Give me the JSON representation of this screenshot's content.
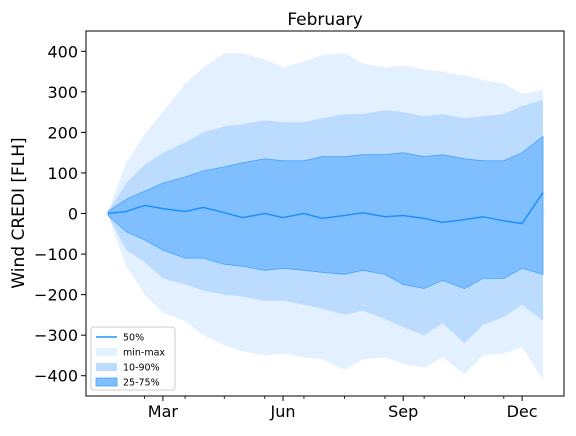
{
  "chart_data": {
    "type": "area",
    "title": "February",
    "xlabel": "",
    "ylabel": "Wind CREDI [FLH]",
    "x_start": "Feb 1",
    "x_end": "Dec 31",
    "x_ticks": [
      "Mar",
      "Jun",
      "Sep",
      "Dec"
    ],
    "x_tick_months": [
      3,
      6,
      9,
      12
    ],
    "y_ticks": [
      400,
      300,
      200,
      100,
      0,
      -100,
      -200,
      -300,
      -400
    ],
    "y_tick_labels": [
      "400",
      "300",
      "200",
      "100",
      "0",
      "−100",
      "−200",
      "−300",
      "−400"
    ],
    "ylim": [
      -450,
      450
    ],
    "grid": false,
    "legend_position": "lower-left",
    "legend": [
      "50%",
      "min-max",
      "10-90%",
      "25-75%"
    ],
    "colors": {
      "median": "#1e90ff",
      "minmax": "#e3f0ff",
      "p10_90": "#bcdcff",
      "p25_75": "#7fbfff",
      "p25_75_edge": "#4aa3ff"
    },
    "series": [
      {
        "name": "50%",
        "x": [
          "Feb 1",
          "Feb 15",
          "Mar 1",
          "Mar 15",
          "Apr 1",
          "Apr 15",
          "May 1",
          "May 15",
          "Jun 1",
          "Jun 15",
          "Jul 1",
          "Jul 15",
          "Aug 1",
          "Aug 15",
          "Sep 1",
          "Sep 15",
          "Oct 1",
          "Oct 15",
          "Nov 1",
          "Nov 15",
          "Dec 1",
          "Dec 15",
          "Dec 31"
        ],
        "values": [
          0,
          5,
          20,
          12,
          5,
          15,
          2,
          -10,
          0,
          -10,
          0,
          -12,
          -5,
          2,
          -8,
          -5,
          -12,
          -22,
          -15,
          -8,
          -18,
          -25,
          52
        ]
      },
      {
        "name": "25-75%",
        "x": [
          "Feb 1",
          "Feb 15",
          "Mar 1",
          "Mar 15",
          "Apr 1",
          "Apr 15",
          "May 1",
          "May 15",
          "Jun 1",
          "Jun 15",
          "Jul 1",
          "Jul 15",
          "Aug 1",
          "Aug 15",
          "Sep 1",
          "Sep 15",
          "Oct 1",
          "Oct 15",
          "Nov 1",
          "Nov 15",
          "Dec 1",
          "Dec 15",
          "Dec 31"
        ],
        "lower": [
          -5,
          -45,
          -65,
          -90,
          -110,
          -110,
          -125,
          -130,
          -140,
          -135,
          -140,
          -145,
          -150,
          -140,
          -150,
          -175,
          -185,
          -165,
          -185,
          -160,
          -160,
          -135,
          -150
        ],
        "upper": [
          5,
          35,
          55,
          75,
          90,
          105,
          115,
          125,
          135,
          130,
          130,
          140,
          140,
          145,
          145,
          150,
          140,
          145,
          135,
          130,
          130,
          150,
          190
        ]
      },
      {
        "name": "10-90%",
        "x": [
          "Feb 1",
          "Feb 15",
          "Mar 1",
          "Mar 15",
          "Apr 1",
          "Apr 15",
          "May 1",
          "May 15",
          "Jun 1",
          "Jun 15",
          "Jul 1",
          "Jul 15",
          "Aug 1",
          "Aug 15",
          "Sep 1",
          "Sep 15",
          "Oct 1",
          "Oct 15",
          "Nov 1",
          "Nov 15",
          "Dec 1",
          "Dec 15",
          "Dec 31"
        ],
        "lower": [
          -5,
          -90,
          -120,
          -160,
          -175,
          -190,
          -200,
          -205,
          -215,
          -215,
          -225,
          -235,
          -250,
          -240,
          -260,
          -280,
          -300,
          -270,
          -320,
          -275,
          -255,
          -225,
          -265
        ],
        "upper": [
          5,
          75,
          120,
          150,
          175,
          200,
          215,
          220,
          230,
          225,
          225,
          235,
          245,
          245,
          255,
          250,
          240,
          245,
          235,
          240,
          245,
          265,
          280
        ]
      },
      {
        "name": "min-max",
        "x": [
          "Feb 1",
          "Feb 15",
          "Mar 1",
          "Mar 15",
          "Apr 1",
          "Apr 15",
          "May 1",
          "May 15",
          "Jun 1",
          "Jun 15",
          "Jul 1",
          "Jul 15",
          "Aug 1",
          "Aug 15",
          "Sep 1",
          "Sep 15",
          "Oct 1",
          "Oct 15",
          "Nov 1",
          "Nov 15",
          "Dec 1",
          "Dec 15",
          "Dec 31"
        ],
        "lower": [
          -5,
          -130,
          -200,
          -245,
          -265,
          -300,
          -325,
          -340,
          -350,
          -345,
          -355,
          -360,
          -385,
          -360,
          -355,
          -370,
          -380,
          -355,
          -395,
          -350,
          -345,
          -330,
          -410
        ],
        "upper": [
          5,
          125,
          195,
          250,
          320,
          360,
          395,
          395,
          380,
          360,
          375,
          390,
          395,
          370,
          360,
          365,
          355,
          350,
          340,
          330,
          320,
          295,
          305
        ]
      }
    ]
  }
}
